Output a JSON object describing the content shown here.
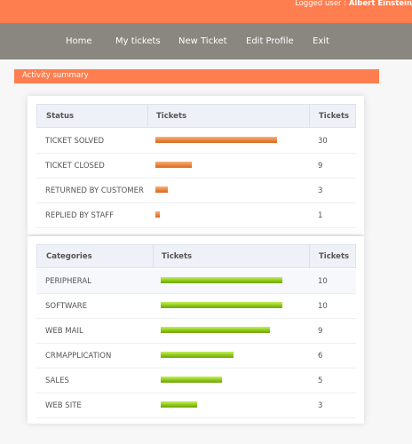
{
  "header": {
    "logged_label": "Logged user :",
    "user_name": "Albert Einstein"
  },
  "nav": {
    "items": [
      {
        "label": "Home"
      },
      {
        "label": "My tickets"
      },
      {
        "label": "New Ticket"
      },
      {
        "label": "Edit Profile"
      },
      {
        "label": "Exit"
      }
    ]
  },
  "summary": {
    "title": "Activity summary"
  },
  "status_table": {
    "headers": [
      "Status",
      "Tickets",
      "Tickets"
    ],
    "bar_color": "#e8803a",
    "rows": [
      {
        "label": "TICKET SOLVED",
        "count": "30"
      },
      {
        "label": "TICKET CLOSED",
        "count": "9"
      },
      {
        "label": "RETURNED BY CUSTOMER",
        "count": "3"
      },
      {
        "label": "REPLIED BY STAFF",
        "count": "1"
      }
    ]
  },
  "category_table": {
    "headers": [
      "Categories",
      "Tickets",
      "Tickets"
    ],
    "bar_color": "#8bc417",
    "rows": [
      {
        "label": "PERIPHERAL",
        "count": "10"
      },
      {
        "label": "SOFTWARE",
        "count": "10"
      },
      {
        "label": "WEB MAIL",
        "count": "9"
      },
      {
        "label": "CRMAPPLICATION",
        "count": "6"
      },
      {
        "label": "SALES",
        "count": "5"
      },
      {
        "label": "WEB SITE",
        "count": "3"
      }
    ]
  }
}
